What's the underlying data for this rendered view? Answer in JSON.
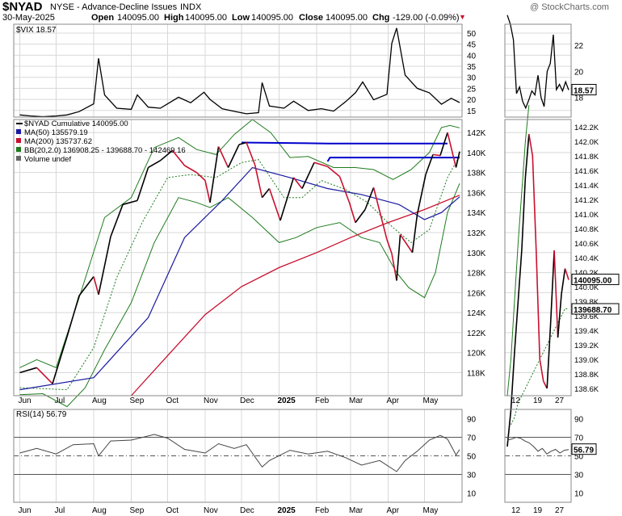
{
  "header": {
    "symbol": "$NYAD",
    "description": "NYSE - Advance-Decline Issues",
    "exchange": "INDX",
    "date": "30-May-2025",
    "open_label": "Open",
    "open_value": "140095.00",
    "high_label": "High",
    "high_value": "140095.00",
    "low_label": "Low",
    "low_value": "140095.00",
    "close_label": "Close",
    "close_value": "140095.00",
    "chg_label": "Chg",
    "chg_value": "-129.00 (-0.09%)",
    "chg_arrow": "▼",
    "watermark": "@ StockCharts.com"
  },
  "colors": {
    "price": "#000000",
    "ma50": "#1a1aa0",
    "ma200": "#c8102e",
    "bb": "#1e7b1e",
    "bb_mid": "#1e7b1e",
    "trendline": "#0000cc",
    "grid": "#d8d8d8",
    "badge_bg": "#ffffff",
    "rsi_line": "#444444"
  },
  "chart_data": [
    {
      "panel": "vix",
      "type": "line",
      "legend": [
        "$VIX 18.57"
      ],
      "y_ticks": [
        15,
        20,
        25,
        30,
        35,
        40,
        45,
        50
      ],
      "ylim": [
        12,
        54
      ],
      "x": [
        "2024-06-01",
        "2024-06-10",
        "2024-06-20",
        "2024-07-01",
        "2024-07-10",
        "2024-07-20",
        "2024-08-01",
        "2024-08-05",
        "2024-08-10",
        "2024-08-20",
        "2024-09-01",
        "2024-09-06",
        "2024-09-15",
        "2024-09-25",
        "2024-10-01",
        "2024-10-10",
        "2024-10-20",
        "2024-10-31",
        "2024-11-05",
        "2024-11-15",
        "2024-11-25",
        "2024-12-05",
        "2024-12-15",
        "2024-12-18",
        "2024-12-24",
        "2025-01-05",
        "2025-01-13",
        "2025-01-25",
        "2025-02-05",
        "2025-02-15",
        "2025-02-25",
        "2025-03-05",
        "2025-03-11",
        "2025-03-20",
        "2025-03-31",
        "2025-04-04",
        "2025-04-08",
        "2025-04-15",
        "2025-04-25",
        "2025-05-05",
        "2025-05-15",
        "2025-05-23",
        "2025-05-30"
      ],
      "values": [
        13,
        12.5,
        12.2,
        12.5,
        13,
        14.5,
        18,
        38.6,
        22,
        16,
        15.5,
        22,
        16.5,
        16,
        18,
        21,
        18.5,
        23.2,
        20,
        15.8,
        14.6,
        13.5,
        14,
        27.6,
        17,
        16,
        19.2,
        15,
        15.8,
        14.7,
        19,
        23,
        27.9,
        19.8,
        22.3,
        45.3,
        52.3,
        31,
        25,
        23,
        17.8,
        20.5,
        18.57
      ],
      "last_value_badge": "18.57",
      "zoom": {
        "values": [
          24.3,
          23.6,
          22.4,
          18.3,
          18.8,
          17.7,
          17.2,
          17.8,
          18.5,
          18.2,
          19.7,
          18.0,
          17.3,
          20.0,
          20.6,
          22.8,
          18.6,
          19.0,
          18.5,
          19.2,
          18.57
        ],
        "y_ticks": [
          18,
          20,
          22
        ],
        "ylim": [
          16.5,
          23.6
        ]
      }
    },
    {
      "panel": "main",
      "type": "line",
      "legend": [
        "$NYAD Cumulative 140095.00",
        "MA(50) 135579.19",
        "MA(200) 135737.62",
        "BB(20,2.0) 136908.25 - 139688.70 - 142469.16",
        "Volume undef"
      ],
      "y_ticks": [
        118000,
        120000,
        122000,
        124000,
        126000,
        128000,
        130000,
        132000,
        134000,
        136000,
        138000,
        140000,
        142000
      ],
      "y_tick_labels": [
        "118K",
        "120K",
        "122K",
        "124K",
        "126K",
        "128K",
        "130K",
        "132K",
        "134K",
        "136K",
        "138K",
        "140K",
        "142K"
      ],
      "ylim": [
        115700,
        143300
      ],
      "x_ticks": [
        "Jun",
        "Jul",
        "Aug",
        "Sep",
        "Oct",
        "Nov",
        "Dec",
        "2025",
        "Feb",
        "Mar",
        "Apr",
        "May"
      ],
      "price": {
        "x": [
          "2024-06-01",
          "2024-06-15",
          "2024-06-28",
          "2024-07-10",
          "2024-07-20",
          "2024-08-01",
          "2024-08-05",
          "2024-08-15",
          "2024-08-25",
          "2024-09-06",
          "2024-09-15",
          "2024-09-25",
          "2024-10-05",
          "2024-10-15",
          "2024-10-25",
          "2024-11-01",
          "2024-11-05",
          "2024-11-12",
          "2024-11-20",
          "2024-11-29",
          "2024-12-05",
          "2024-12-12",
          "2024-12-18",
          "2024-12-24",
          "2025-01-02",
          "2025-01-13",
          "2025-01-20",
          "2025-01-30",
          "2025-02-10",
          "2025-02-20",
          "2025-02-28",
          "2025-03-05",
          "2025-03-13",
          "2025-03-20",
          "2025-03-31",
          "2025-04-04",
          "2025-04-08",
          "2025-04-11",
          "2025-04-21",
          "2025-04-25",
          "2025-05-02",
          "2025-05-08",
          "2025-05-14",
          "2025-05-20",
          "2025-05-27",
          "2025-05-30"
        ],
        "values": [
          118000,
          118500,
          116900,
          121600,
          125700,
          127600,
          125800,
          131600,
          134800,
          135200,
          138500,
          139200,
          140200,
          138700,
          138000,
          137200,
          135000,
          140600,
          138500,
          140800,
          141000,
          138800,
          135500,
          136400,
          133200,
          137500,
          136400,
          139000,
          138600,
          137600,
          135000,
          133000,
          134300,
          136500,
          131300,
          129900,
          127200,
          131800,
          130000,
          133800,
          137800,
          139800,
          139700,
          142000,
          138500,
          140095
        ]
      },
      "ma50": {
        "x": [
          "2024-06-01",
          "2024-08-01",
          "2024-09-15",
          "2024-10-15",
          "2024-11-15",
          "2024-12-10",
          "2025-01-10",
          "2025-02-10",
          "2025-03-10",
          "2025-04-10",
          "2025-05-01",
          "2025-05-15",
          "2025-05-30"
        ],
        "values": [
          116300,
          117500,
          123500,
          131500,
          135200,
          138500,
          137500,
          136400,
          135800,
          134800,
          133300,
          134000,
          135579
        ]
      },
      "ma200": {
        "x": [
          "2024-09-01",
          "2024-10-01",
          "2024-11-01",
          "2024-12-01",
          "2025-01-01",
          "2025-02-01",
          "2025-03-01",
          "2025-04-01",
          "2025-05-01",
          "2025-05-30"
        ],
        "values": [
          115700,
          119700,
          123800,
          126600,
          128500,
          130000,
          131500,
          133000,
          134300,
          135738
        ]
      },
      "bb_upper": {
        "x": [
          "2024-06-01",
          "2024-06-15",
          "2024-07-01",
          "2024-07-20",
          "2024-08-10",
          "2024-09-01",
          "2024-09-20",
          "2024-10-10",
          "2024-10-25",
          "2024-11-10",
          "2024-11-25",
          "2024-12-10",
          "2024-12-25",
          "2025-01-10",
          "2025-01-25",
          "2025-02-15",
          "2025-03-05",
          "2025-03-20",
          "2025-04-05",
          "2025-04-20",
          "2025-05-05",
          "2025-05-15",
          "2025-05-22",
          "2025-05-30"
        ],
        "values": [
          118500,
          119300,
          118500,
          125500,
          133500,
          135500,
          140500,
          141500,
          140300,
          139800,
          141800,
          143300,
          142000,
          139500,
          139600,
          138500,
          138500,
          138300,
          137300,
          138300,
          140000,
          142500,
          142700,
          142470
        ]
      },
      "bb_lower": {
        "x": [
          "2024-06-01",
          "2024-06-20",
          "2024-07-10",
          "2024-07-25",
          "2024-08-10",
          "2024-09-01",
          "2024-09-20",
          "2024-10-10",
          "2024-10-25",
          "2024-11-05",
          "2024-11-20",
          "2024-12-10",
          "2025-01-01",
          "2025-01-15",
          "2025-02-01",
          "2025-02-20",
          "2025-03-10",
          "2025-03-25",
          "2025-04-08",
          "2025-04-18",
          "2025-05-01",
          "2025-05-10",
          "2025-05-20",
          "2025-05-30"
        ],
        "values": [
          115800,
          115900,
          114600,
          116500,
          120300,
          125000,
          131000,
          135500,
          135000,
          134500,
          135500,
          133500,
          131000,
          131500,
          132500,
          133000,
          131500,
          131000,
          128000,
          126500,
          125500,
          128000,
          134000,
          136908
        ]
      },
      "bb_mid": {
        "x": [
          "2024-06-01",
          "2024-07-10",
          "2024-08-01",
          "2024-08-20",
          "2024-09-10",
          "2024-10-01",
          "2024-10-20",
          "2024-11-10",
          "2024-12-01",
          "2024-12-15",
          "2025-01-05",
          "2025-01-20",
          "2025-02-05",
          "2025-02-25",
          "2025-03-15",
          "2025-04-05",
          "2025-04-20",
          "2025-05-05",
          "2025-05-20",
          "2025-05-30"
        ],
        "values": [
          116500,
          116300,
          120500,
          127500,
          133000,
          137500,
          137800,
          137500,
          139000,
          139300,
          135500,
          135500,
          137200,
          136300,
          135000,
          132500,
          131000,
          132300,
          137500,
          139689
        ]
      },
      "trendlines": [
        {
          "x": [
            "2024-12-01",
            "2025-02-10",
            "2025-05-20"
          ],
          "values": [
            141000,
            140900,
            140900
          ]
        },
        {
          "x": [
            "2025-02-10",
            "2025-02-12",
            "2025-05-30"
          ],
          "values": [
            139100,
            139500,
            139500
          ]
        }
      ],
      "last_value_badge": "140095.00",
      "bb_mid_badge": "139688.70",
      "zoom": {
        "x_ticks": [
          "12",
          "19",
          "27"
        ],
        "y_ticks": [
          138600,
          138800,
          139000,
          139200,
          139400,
          139600,
          139800,
          140000,
          140200,
          140400,
          140600,
          140800,
          141000,
          141200,
          141400,
          141600,
          141800,
          142000,
          142200
        ],
        "y_tick_labels": [
          "138.6K",
          "138.8K",
          "139.0K",
          "139.2K",
          "139.4K",
          "139.6K",
          "139.8K",
          "140.0K",
          "140.2K",
          "140.4K",
          "140.6K",
          "140.8K",
          "141.0K",
          "141.2K",
          "141.4K",
          "141.6K",
          "141.8K",
          "142.0K",
          "142.2K"
        ],
        "ylim": [
          138500,
          142300
        ],
        "price": [
          137800,
          138300,
          139100,
          139800,
          140500,
          141500,
          142100,
          141800,
          140500,
          139000,
          138700,
          138600,
          139500,
          140500,
          139300,
          139900,
          140250,
          140095
        ],
        "bb_mid": [
          138100,
          138200,
          138400,
          138500,
          138600,
          138700,
          138800,
          138900,
          139000,
          139100,
          139200,
          139300,
          139400,
          139500,
          139600,
          139700,
          139689
        ],
        "bb_upper": [
          138500,
          139000,
          139800,
          140600,
          141300,
          142000,
          142500
        ]
      }
    },
    {
      "panel": "rsi",
      "type": "line",
      "legend": [
        "RSI(14) 56.79"
      ],
      "y_ticks": [
        10,
        30,
        50,
        70,
        90
      ],
      "ylim": [
        0,
        100
      ],
      "x_ticks": [
        "Jun",
        "Jul",
        "Aug",
        "Sep",
        "Oct",
        "Nov",
        "Dec",
        "2025",
        "Feb",
        "Mar",
        "Apr",
        "May"
      ],
      "x": [
        "2024-06-01",
        "2024-06-15",
        "2024-07-01",
        "2024-07-15",
        "2024-08-01",
        "2024-08-05",
        "2024-08-15",
        "2024-09-01",
        "2024-09-20",
        "2024-10-01",
        "2024-10-15",
        "2024-11-01",
        "2024-11-12",
        "2024-11-25",
        "2024-12-05",
        "2024-12-18",
        "2024-12-24",
        "2025-01-10",
        "2025-01-25",
        "2025-02-10",
        "2025-02-25",
        "2025-03-10",
        "2025-03-25",
        "2025-04-08",
        "2025-04-15",
        "2025-04-25",
        "2025-05-05",
        "2025-05-14",
        "2025-05-20",
        "2025-05-27",
        "2025-05-30"
      ],
      "values": [
        53,
        58,
        52,
        62,
        63,
        50,
        66,
        67,
        73,
        69,
        57,
        53,
        63,
        58,
        62,
        38,
        45,
        56,
        52,
        55,
        48,
        40,
        45,
        33,
        45,
        55,
        67,
        72,
        68,
        51,
        56.79
      ],
      "last_value_badge": "56.79",
      "zoom": {
        "x_ticks": [
          "12",
          "19",
          "27"
        ],
        "values": [
          67,
          68,
          70,
          69,
          66,
          64,
          60,
          55,
          58,
          52,
          55,
          57,
          53,
          56,
          56.79
        ]
      }
    }
  ]
}
